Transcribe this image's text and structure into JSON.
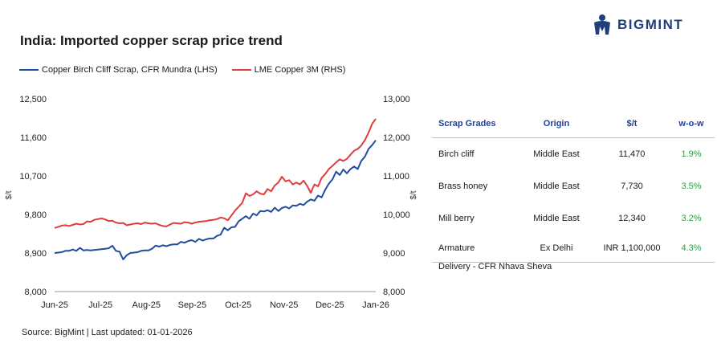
{
  "title": "India: Imported copper scrap price trend",
  "brand": {
    "name": "BIGMINT",
    "color": "#1f3f7a"
  },
  "source": "Source: BigMint | Last updated: 01-01-2026",
  "chart_data": {
    "type": "line",
    "x_labels": [
      "Jun-25",
      "Jul-25",
      "Aug-25",
      "Sep-25",
      "Oct-25",
      "Nov-25",
      "Dec-25",
      "Jan-26"
    ],
    "left_axis": {
      "label": "$/t",
      "ticks": [
        "8,000",
        "8,900",
        "9,800",
        "10,700",
        "11,600",
        "12,500"
      ],
      "ylim": [
        8000,
        12500
      ]
    },
    "right_axis": {
      "label": "$/t",
      "ticks": [
        "8,000",
        "9,000",
        "10,000",
        "11,000",
        "12,000",
        "13,000"
      ],
      "ylim": [
        8000,
        13000
      ]
    },
    "legend_position": "top-left",
    "grid": false,
    "series": [
      {
        "name": "Copper Birch Cliff Scrap, CFR Mundra (LHS)",
        "axis": "left",
        "color": "#1f4e9c",
        "values": [
          8900,
          8910,
          8920,
          8950,
          8950,
          8980,
          8950,
          9020,
          8960,
          8970,
          8960,
          8970,
          8980,
          8990,
          9000,
          9010,
          9070,
          8950,
          8930,
          8750,
          8850,
          8900,
          8910,
          8920,
          8950,
          8960,
          8960,
          9000,
          9070,
          9050,
          9080,
          9060,
          9090,
          9100,
          9100,
          9160,
          9140,
          9180,
          9200,
          9160,
          9230,
          9190,
          9220,
          9240,
          9240,
          9300,
          9330,
          9490,
          9430,
          9500,
          9510,
          9640,
          9700,
          9760,
          9700,
          9820,
          9780,
          9880,
          9870,
          9900,
          9860,
          9960,
          9880,
          9950,
          9980,
          9940,
          10010,
          10000,
          10050,
          10020,
          10100,
          10150,
          10120,
          10240,
          10200,
          10380,
          10520,
          10620,
          10800,
          10720,
          10850,
          10760,
          10860,
          10920,
          10860,
          11050,
          11150,
          11330,
          11420,
          11530
        ]
      },
      {
        "name": "LME Copper 3M (RHS)",
        "axis": "right",
        "color": "#e03c3c",
        "values": [
          9650,
          9680,
          9710,
          9720,
          9700,
          9730,
          9760,
          9740,
          9750,
          9820,
          9810,
          9860,
          9880,
          9900,
          9870,
          9830,
          9840,
          9790,
          9770,
          9780,
          9720,
          9740,
          9760,
          9770,
          9750,
          9790,
          9770,
          9760,
          9770,
          9730,
          9700,
          9690,
          9740,
          9780,
          9770,
          9760,
          9800,
          9790,
          9760,
          9790,
          9810,
          9820,
          9830,
          9850,
          9860,
          9880,
          9920,
          9900,
          9850,
          9970,
          10100,
          10200,
          10300,
          10550,
          10480,
          10520,
          10600,
          10540,
          10520,
          10660,
          10600,
          10750,
          10830,
          10980,
          10860,
          10890,
          10780,
          10830,
          10780,
          10880,
          10740,
          10560,
          10780,
          10730,
          10950,
          11050,
          11180,
          11260,
          11350,
          11430,
          11390,
          11440,
          11550,
          11650,
          11700,
          11790,
          11930,
          12120,
          12350,
          12480
        ]
      }
    ]
  },
  "table": {
    "headers": {
      "grade": "Scrap Grades",
      "origin": "Origin",
      "price": "$/t",
      "wow": "w-o-w"
    },
    "rows": [
      {
        "grade": "Birch cliff",
        "origin": "Middle East",
        "price": "11,470",
        "wow": "1.9%"
      },
      {
        "grade": "Brass honey",
        "origin": "Middle East",
        "price": "7,730",
        "wow": "3.5%"
      },
      {
        "grade": "Mill berry",
        "origin": "Middle East",
        "price": "12,340",
        "wow": "3.2%"
      },
      {
        "grade": "Armature",
        "origin": "Ex Delhi",
        "price": "INR 1,100,000",
        "wow": "4.3%"
      }
    ],
    "note": "Delivery - CFR Nhava Sheva",
    "wow_color": "#2e9e43",
    "header_color": "#1f3f9a"
  }
}
